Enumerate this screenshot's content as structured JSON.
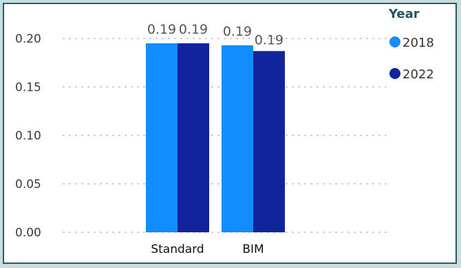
{
  "chart_data": {
    "type": "bar",
    "categories": [
      "Standard",
      "BIM"
    ],
    "series": [
      {
        "name": "2018",
        "values": [
          0.195,
          0.193
        ],
        "labels": [
          "0.19",
          "0.19"
        ],
        "color": "#118dff"
      },
      {
        "name": "2022",
        "values": [
          0.195,
          0.187
        ],
        "labels": [
          "0.19",
          "0.19"
        ],
        "color": "#12239e"
      }
    ],
    "y_ticks": [
      "0.00",
      "0.05",
      "0.10",
      "0.15",
      "0.20"
    ],
    "ylim": [
      0,
      0.2
    ],
    "legend_title": "Year",
    "legend_position": "top-right",
    "grid": true
  }
}
